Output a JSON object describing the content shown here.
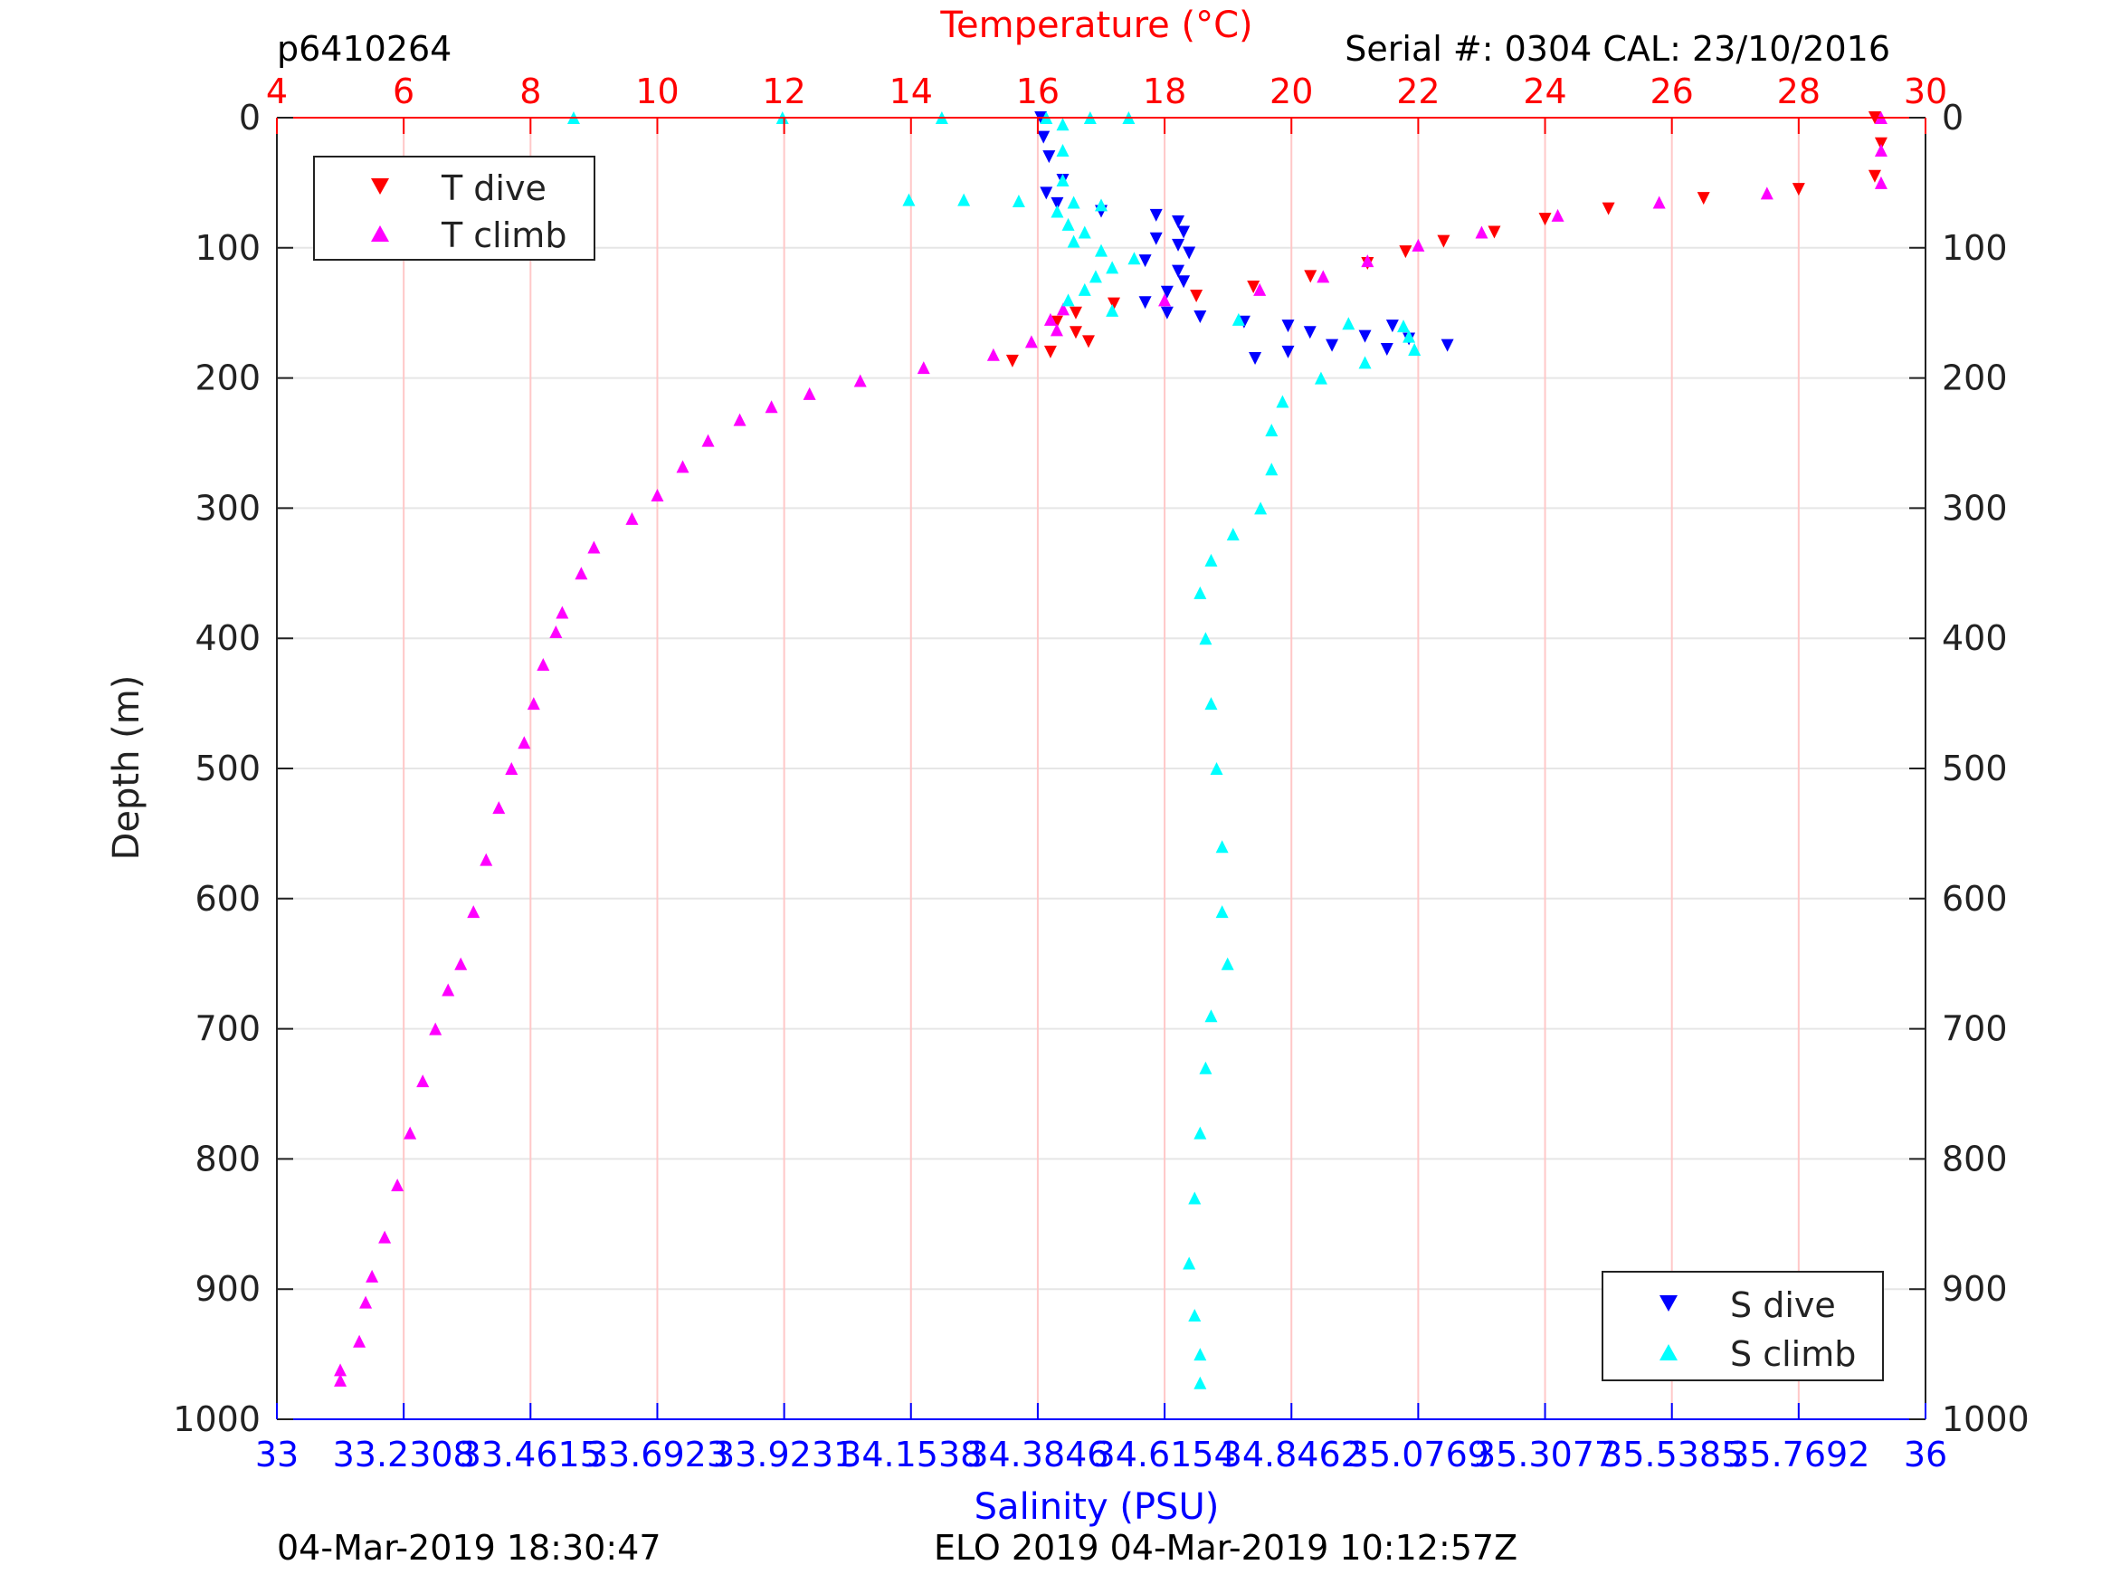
{
  "header": {
    "profile_id": "p6410264",
    "serial": "Serial #: 0304  CAL: 23/10/2016"
  },
  "footer": {
    "render_time": "04-Mar-2019 18:30:47",
    "mission_stamp": "ELO 2019 04-Mar-2019 10:12:57Z"
  },
  "colors": {
    "t_dive": "#ff0000",
    "t_climb": "#ff00ff",
    "s_dive": "#0000ff",
    "s_climb": "#00ffff",
    "temperature_axis": "#ff0000",
    "salinity_axis": "#0000ff",
    "grid": "#e6e6e6",
    "temp_grid": "#ffc8c8"
  },
  "chart_data": {
    "type": "scatter",
    "ylabel": "Depth (m)",
    "ylim": [
      0,
      1000
    ],
    "y_reversed": true,
    "yticks": [
      "0",
      "100",
      "200",
      "300",
      "400",
      "500",
      "600",
      "700",
      "800",
      "900",
      "1000"
    ],
    "y_tick_values": [
      0,
      100,
      200,
      300,
      400,
      500,
      600,
      700,
      800,
      900,
      1000
    ],
    "grid": true,
    "temperature_axis": {
      "label": "Temperature (°C)",
      "position": "top",
      "lim": [
        4,
        30
      ],
      "ticks": [
        "4",
        "6",
        "8",
        "10",
        "12",
        "14",
        "16",
        "18",
        "20",
        "22",
        "24",
        "26",
        "28",
        "30"
      ],
      "tick_values": [
        4,
        6,
        8,
        10,
        12,
        14,
        16,
        18,
        20,
        22,
        24,
        26,
        28,
        30
      ]
    },
    "salinity_axis": {
      "label": "Salinity (PSU)",
      "position": "bottom",
      "lim": [
        33,
        36
      ],
      "ticks": [
        "33",
        "33.2308",
        "33.4615",
        "33.6923",
        "33.9231",
        "34.1538",
        "34.3846",
        "34.6154",
        "34.8462",
        "35.0769",
        "35.3077",
        "35.5385",
        "35.7692",
        "36"
      ],
      "tick_values": [
        33,
        33.2308,
        33.4615,
        33.6923,
        33.9231,
        34.1538,
        34.3846,
        34.6154,
        34.8462,
        35.0769,
        35.3077,
        35.5385,
        35.7692,
        36
      ]
    },
    "legend_temperature": {
      "placement": "top-left",
      "entries": [
        "T dive",
        "T climb"
      ]
    },
    "legend_salinity": {
      "placement": "bottom-right",
      "entries": [
        "S dive",
        "S climb"
      ]
    },
    "series": [
      {
        "name": "T dive",
        "axis": "temperature",
        "marker": "triangle-down",
        "color": "#ff0000",
        "points": [
          [
            29.2,
            0
          ],
          [
            29.3,
            20
          ],
          [
            29.2,
            45
          ],
          [
            28.0,
            55
          ],
          [
            26.5,
            62
          ],
          [
            25.0,
            70
          ],
          [
            24.0,
            78
          ],
          [
            23.2,
            88
          ],
          [
            22.4,
            95
          ],
          [
            21.8,
            103
          ],
          [
            21.2,
            112
          ],
          [
            20.3,
            122
          ],
          [
            19.4,
            130
          ],
          [
            18.5,
            137
          ],
          [
            17.2,
            143
          ],
          [
            16.6,
            150
          ],
          [
            16.3,
            157
          ],
          [
            16.6,
            165
          ],
          [
            16.8,
            172
          ],
          [
            16.2,
            180
          ],
          [
            15.6,
            187
          ]
        ]
      },
      {
        "name": "T climb",
        "axis": "temperature",
        "marker": "triangle-up",
        "color": "#ff00ff",
        "points": [
          [
            29.3,
            0
          ],
          [
            29.3,
            25
          ],
          [
            29.3,
            50
          ],
          [
            27.5,
            58
          ],
          [
            25.8,
            65
          ],
          [
            24.2,
            75
          ],
          [
            23.0,
            88
          ],
          [
            22.0,
            98
          ],
          [
            21.2,
            110
          ],
          [
            20.5,
            122
          ],
          [
            19.5,
            132
          ],
          [
            18.0,
            140
          ],
          [
            16.4,
            147
          ],
          [
            16.2,
            155
          ],
          [
            16.3,
            163
          ],
          [
            15.9,
            172
          ],
          [
            15.3,
            182
          ],
          [
            14.2,
            192
          ],
          [
            13.2,
            202
          ],
          [
            12.4,
            212
          ],
          [
            11.8,
            222
          ],
          [
            11.3,
            232
          ],
          [
            10.8,
            248
          ],
          [
            10.4,
            268
          ],
          [
            10.0,
            290
          ],
          [
            9.6,
            308
          ],
          [
            9.0,
            330
          ],
          [
            8.8,
            350
          ],
          [
            8.5,
            380
          ],
          [
            8.4,
            395
          ],
          [
            8.2,
            420
          ],
          [
            8.05,
            450
          ],
          [
            7.9,
            480
          ],
          [
            7.7,
            500
          ],
          [
            7.5,
            530
          ],
          [
            7.3,
            570
          ],
          [
            7.1,
            610
          ],
          [
            6.9,
            650
          ],
          [
            6.7,
            670
          ],
          [
            6.5,
            700
          ],
          [
            6.3,
            740
          ],
          [
            6.1,
            780
          ],
          [
            5.9,
            820
          ],
          [
            5.7,
            860
          ],
          [
            5.5,
            890
          ],
          [
            5.4,
            910
          ],
          [
            5.3,
            940
          ],
          [
            5.0,
            962
          ],
          [
            5.0,
            970
          ]
        ]
      },
      {
        "name": "S dive",
        "axis": "salinity",
        "marker": "triangle-down",
        "color": "#0000ff",
        "points": [
          [
            34.39,
            0
          ],
          [
            34.395,
            15
          ],
          [
            34.405,
            30
          ],
          [
            34.43,
            48
          ],
          [
            34.4,
            58
          ],
          [
            34.42,
            66
          ],
          [
            34.5,
            72
          ],
          [
            34.6,
            75
          ],
          [
            34.64,
            80
          ],
          [
            34.65,
            88
          ],
          [
            34.6,
            93
          ],
          [
            34.64,
            98
          ],
          [
            34.66,
            104
          ],
          [
            34.58,
            110
          ],
          [
            34.64,
            118
          ],
          [
            34.65,
            126
          ],
          [
            34.62,
            134
          ],
          [
            34.58,
            142
          ],
          [
            34.62,
            150
          ],
          [
            34.68,
            153
          ],
          [
            34.76,
            157
          ],
          [
            34.84,
            160
          ],
          [
            34.88,
            165
          ],
          [
            34.78,
            185
          ],
          [
            34.84,
            180
          ],
          [
            34.92,
            175
          ],
          [
            34.98,
            168
          ],
          [
            35.02,
            178
          ],
          [
            35.03,
            160
          ],
          [
            35.06,
            170
          ],
          [
            35.13,
            175
          ]
        ]
      },
      {
        "name": "S climb",
        "axis": "salinity",
        "marker": "triangle-up",
        "color": "#00ffff",
        "points": [
          [
            33.54,
            0
          ],
          [
            33.92,
            0
          ],
          [
            34.21,
            0
          ],
          [
            34.4,
            0
          ],
          [
            34.48,
            0
          ],
          [
            34.55,
            0
          ],
          [
            34.43,
            5
          ],
          [
            34.43,
            25
          ],
          [
            34.43,
            48
          ],
          [
            34.15,
            63
          ],
          [
            34.25,
            63
          ],
          [
            34.35,
            64
          ],
          [
            34.45,
            65
          ],
          [
            34.5,
            67
          ],
          [
            34.42,
            72
          ],
          [
            34.44,
            82
          ],
          [
            34.47,
            88
          ],
          [
            34.45,
            95
          ],
          [
            34.5,
            102
          ],
          [
            34.56,
            108
          ],
          [
            34.52,
            115
          ],
          [
            34.49,
            122
          ],
          [
            34.47,
            132
          ],
          [
            34.44,
            140
          ],
          [
            34.52,
            148
          ],
          [
            34.75,
            155
          ],
          [
            34.95,
            158
          ],
          [
            35.05,
            160
          ],
          [
            35.06,
            168
          ],
          [
            35.07,
            178
          ],
          [
            34.98,
            188
          ],
          [
            34.9,
            200
          ],
          [
            34.83,
            218
          ],
          [
            34.81,
            240
          ],
          [
            34.81,
            270
          ],
          [
            34.79,
            300
          ],
          [
            34.74,
            320
          ],
          [
            34.7,
            340
          ],
          [
            34.68,
            365
          ],
          [
            34.69,
            400
          ],
          [
            34.7,
            450
          ],
          [
            34.71,
            500
          ],
          [
            34.72,
            560
          ],
          [
            34.72,
            610
          ],
          [
            34.73,
            650
          ],
          [
            34.7,
            690
          ],
          [
            34.69,
            730
          ],
          [
            34.68,
            780
          ],
          [
            34.67,
            830
          ],
          [
            34.66,
            880
          ],
          [
            34.67,
            920
          ],
          [
            34.68,
            950
          ],
          [
            34.68,
            972
          ]
        ]
      }
    ]
  }
}
